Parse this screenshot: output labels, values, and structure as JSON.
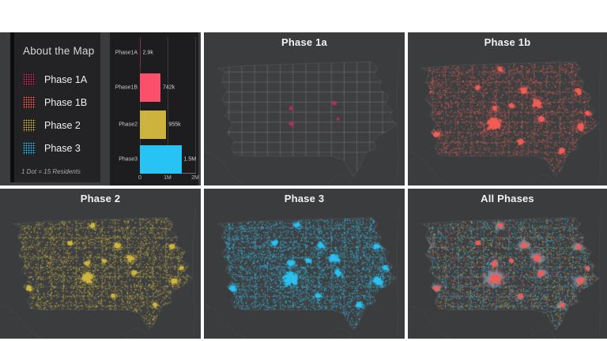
{
  "legend": {
    "title": "About the Map",
    "items": [
      {
        "label": "Phase 1A",
        "phase": "1A"
      },
      {
        "label": "Phase 1B",
        "phase": "1B"
      },
      {
        "label": "Phase 2",
        "phase": "2"
      },
      {
        "label": "Phase 3",
        "phase": "3"
      }
    ],
    "footnote": "1 Dot = 15 Residents"
  },
  "chart_data": {
    "type": "bar",
    "orientation": "horizontal",
    "title": "",
    "xlabel": "",
    "ylabel": "",
    "categories": [
      "Phase1A",
      "Phase1B",
      "Phase2",
      "Phase3"
    ],
    "values": [
      2900,
      742000,
      955000,
      1500000
    ],
    "value_labels": [
      "2.9k",
      "742k",
      "955k",
      "1.5M"
    ],
    "bar_colors": [
      "#c2305a",
      "#fb4f6b",
      "#cbb33d",
      "#28c3f5"
    ],
    "xlim": [
      0,
      2000000
    ],
    "xticks": [
      {
        "value": 0,
        "label": "0"
      },
      {
        "value": 1000000,
        "label": "1M"
      },
      {
        "value": 2000000,
        "label": "2M"
      }
    ],
    "grid": true,
    "legend_position": "none"
  },
  "maps": [
    {
      "id": "phase1a",
      "title": "Phase 1a",
      "phases": [
        "1A"
      ]
    },
    {
      "id": "phase1b",
      "title": "Phase 1b",
      "phases": [
        "1B"
      ]
    },
    {
      "id": "phase2",
      "title": "Phase 2",
      "phases": [
        "2"
      ]
    },
    {
      "id": "phase3",
      "title": "Phase 3",
      "phases": [
        "3"
      ]
    },
    {
      "id": "all",
      "title": "All Phases",
      "phases": [
        "3",
        "2",
        "1B",
        "1A"
      ]
    }
  ],
  "colors": {
    "page_bg": "#ffffff",
    "divider": "#ffffff",
    "panel_gray": "#3a3c3e",
    "card_bg": "#232326",
    "chart_bg": "#1d1d20",
    "map_bg": "#3b3c3d",
    "text_light": "#efefef",
    "text_dim": "#a9a9a9",
    "phase": {
      "1A": "#c2305a",
      "1B": "#f25d55",
      "2": "#cfb640",
      "3": "#2bc0f0"
    }
  }
}
